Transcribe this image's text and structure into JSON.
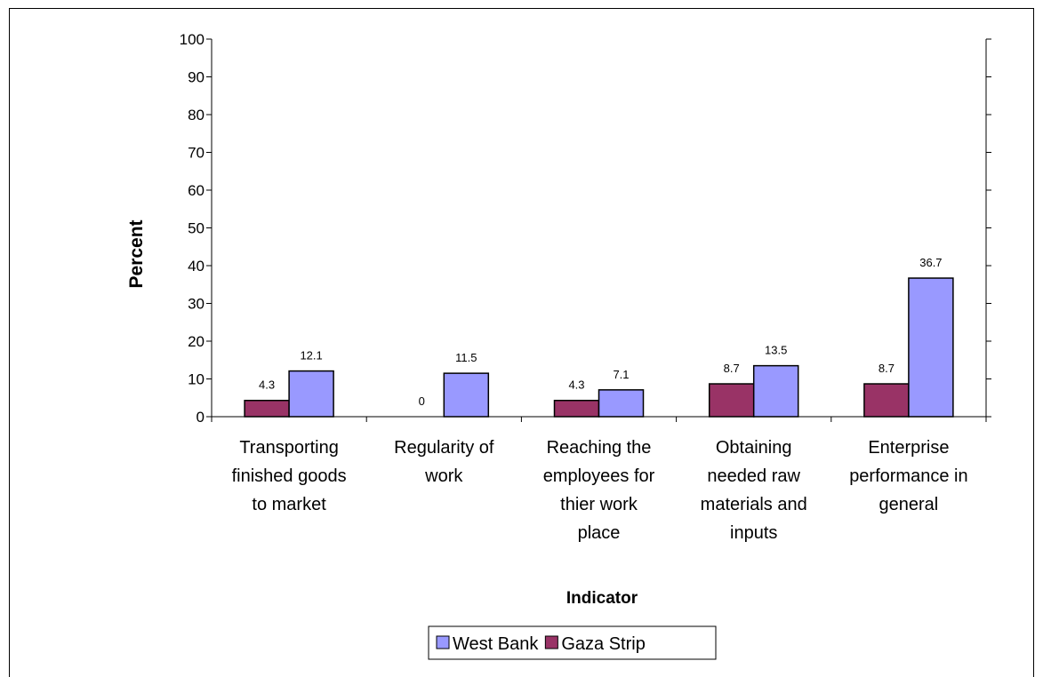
{
  "chart_data": {
    "type": "bar",
    "categories": [
      [
        "Transporting",
        "finished goods",
        "to market"
      ],
      [
        "Regularity of",
        "work"
      ],
      [
        "Reaching the",
        "employees for",
        "thier  work",
        "place"
      ],
      [
        "Obtaining",
        "needed raw",
        "materials and",
        "inputs"
      ],
      [
        "Enterprise",
        "performance in",
        "general"
      ]
    ],
    "series": [
      {
        "name": "Gaza Strip",
        "values": [
          4.3,
          0,
          4.3,
          8.7,
          8.7
        ],
        "color": "#993366"
      },
      {
        "name": "West Bank",
        "values": [
          12.1,
          11.5,
          7.1,
          13.5,
          36.7
        ],
        "color": "#9999FF"
      }
    ],
    "data_labels": [
      [
        "4.3",
        "0",
        "4.3",
        "8.7",
        "8.7"
      ],
      [
        "12.1",
        "11.5",
        "7.1",
        "13.5",
        "36.7"
      ]
    ],
    "xlabel": "Indicator",
    "ylabel": "Percent",
    "ylim": [
      0,
      100
    ],
    "yticks": [
      0,
      10,
      20,
      30,
      40,
      50,
      60,
      70,
      80,
      90,
      100
    ],
    "legend": {
      "position": "bottom",
      "entries": [
        {
          "label": "West Bank",
          "color": "#9999FF"
        },
        {
          "label": "Gaza Strip",
          "color": "#993366"
        }
      ]
    },
    "grid": false
  }
}
